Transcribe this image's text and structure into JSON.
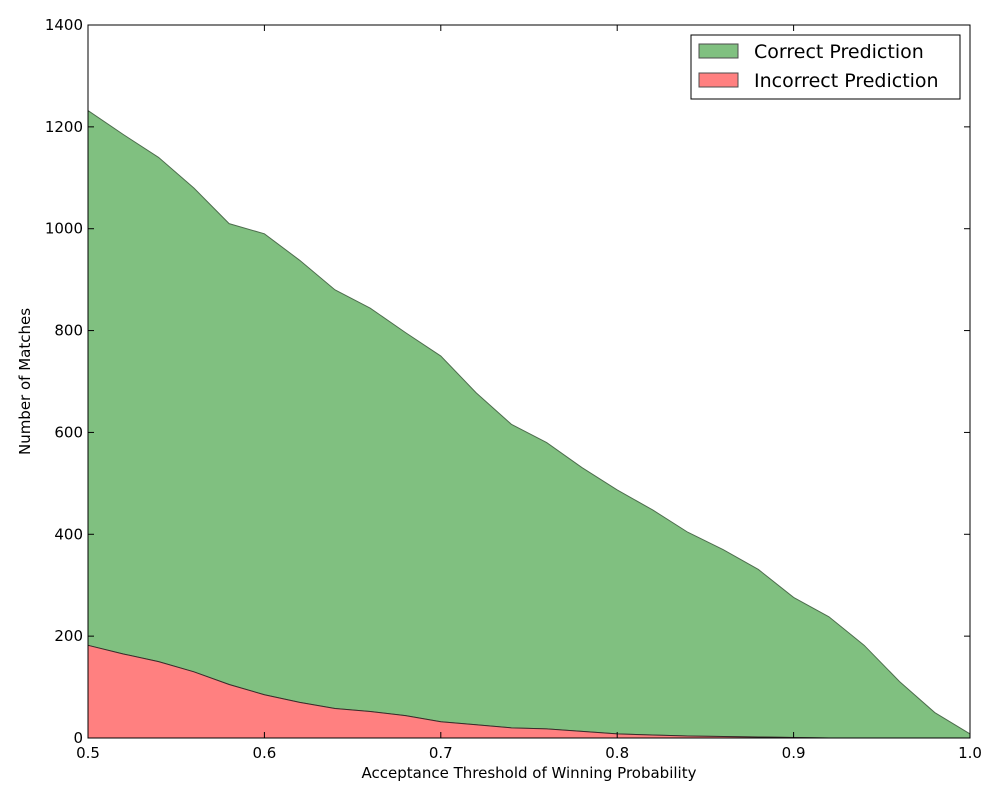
{
  "chart_data": {
    "type": "area",
    "stacked": true,
    "title": "",
    "xlabel": "Acceptance Threshold of Winning Probability",
    "ylabel": "Number of Matches",
    "xlim": [
      0.5,
      1.0
    ],
    "ylim": [
      0,
      1400
    ],
    "xticks": [
      0.5,
      0.6,
      0.7,
      0.8,
      0.9,
      1.0
    ],
    "xtick_labels": [
      "0.5",
      "0.6",
      "0.7",
      "0.8",
      "0.9",
      "1.0"
    ],
    "yticks": [
      0,
      200,
      400,
      600,
      800,
      1000,
      1200,
      1400
    ],
    "ytick_labels": [
      "0",
      "200",
      "400",
      "600",
      "800",
      "1000",
      "1200",
      "1400"
    ],
    "grid": false,
    "legend": "top-right",
    "x": [
      0.5,
      0.52,
      0.54,
      0.56,
      0.58,
      0.6,
      0.62,
      0.64,
      0.66,
      0.68,
      0.7,
      0.72,
      0.74,
      0.76,
      0.78,
      0.8,
      0.82,
      0.84,
      0.86,
      0.88,
      0.9,
      0.92,
      0.94,
      0.96,
      0.98,
      1.0
    ],
    "series": [
      {
        "name": "Correct Prediction",
        "color": "#80c080",
        "values": [
          1050,
          1020,
          990,
          950,
          905,
          905,
          868,
          822,
          792,
          752,
          718,
          652,
          596,
          562,
          518,
          479,
          442,
          400,
          367,
          329,
          275,
          238,
          182,
          111,
          50,
          8
        ]
      },
      {
        "name": "Incorrect Prediction",
        "color": "#ff8080",
        "values": [
          182,
          165,
          150,
          130,
          105,
          85,
          70,
          58,
          52,
          44,
          32,
          26,
          20,
          18,
          13,
          8,
          6,
          4,
          3,
          2,
          1,
          0,
          0,
          0,
          0,
          0
        ]
      }
    ]
  }
}
